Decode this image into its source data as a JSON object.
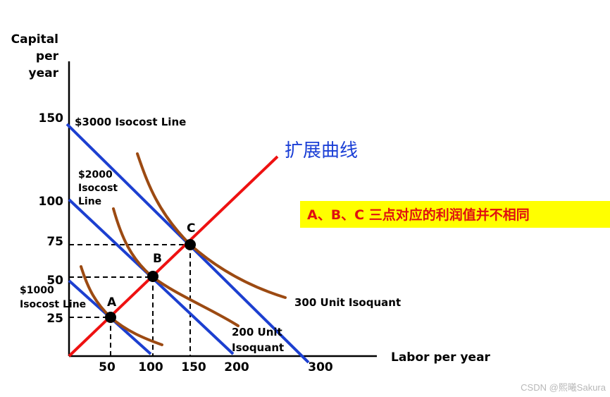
{
  "axes": {
    "y_title_lines": [
      "Capital",
      "per",
      "year"
    ],
    "x_title": "Labor per year",
    "y_ticks": [
      "150",
      "100",
      "75",
      "50",
      "25"
    ],
    "x_ticks": [
      "50",
      "100",
      "150",
      "200",
      "300"
    ]
  },
  "isocost": {
    "line_3000": "$3000 Isocost Line",
    "line_2000_lines": [
      "$2000",
      "Isocost",
      "Line"
    ],
    "line_1000_lines": [
      "$1000",
      "Isocost Line"
    ]
  },
  "isoquants": {
    "unit_300": "300 Unit Isoquant",
    "unit_200_lines": [
      "200 Unit",
      "Isoquant"
    ]
  },
  "points": {
    "a": "A",
    "b": "B",
    "c": "C"
  },
  "expansion_path_label": "扩展曲线",
  "banner": {
    "text": "A、B、C 三点对应的利润值并不相同",
    "bg_color": "#ffff00",
    "text_color": "#e01010"
  },
  "watermark": "CSDN @熙曦Sakura",
  "colors": {
    "isocost": "#1c3fd0",
    "expansion": "#ee1111",
    "isoquant": "#9c4a12",
    "axis": "#000000"
  },
  "chart_data": {
    "type": "line",
    "xlabel": "Labor per year",
    "ylabel": "Capital per year",
    "series": [
      {
        "name": "$1000 Isocost Line",
        "x": [
          0,
          100
        ],
        "y": [
          50,
          0
        ]
      },
      {
        "name": "$2000 Isocost Line",
        "x": [
          0,
          200
        ],
        "y": [
          100,
          0
        ]
      },
      {
        "name": "$3000 Isocost Line",
        "x": [
          0,
          300
        ],
        "y": [
          150,
          0
        ]
      },
      {
        "name": "扩展曲线",
        "x": [
          0,
          150
        ],
        "y": [
          0,
          75
        ]
      },
      {
        "name": "200 Unit Isoquant",
        "x": [
          100
        ],
        "y": [
          50
        ]
      },
      {
        "name": "300 Unit Isoquant",
        "x": [
          150
        ],
        "y": [
          75
        ]
      }
    ],
    "points": [
      {
        "label": "A",
        "x": 50,
        "y": 25
      },
      {
        "label": "B",
        "x": 100,
        "y": 50
      },
      {
        "label": "C",
        "x": 150,
        "y": 75
      }
    ]
  }
}
